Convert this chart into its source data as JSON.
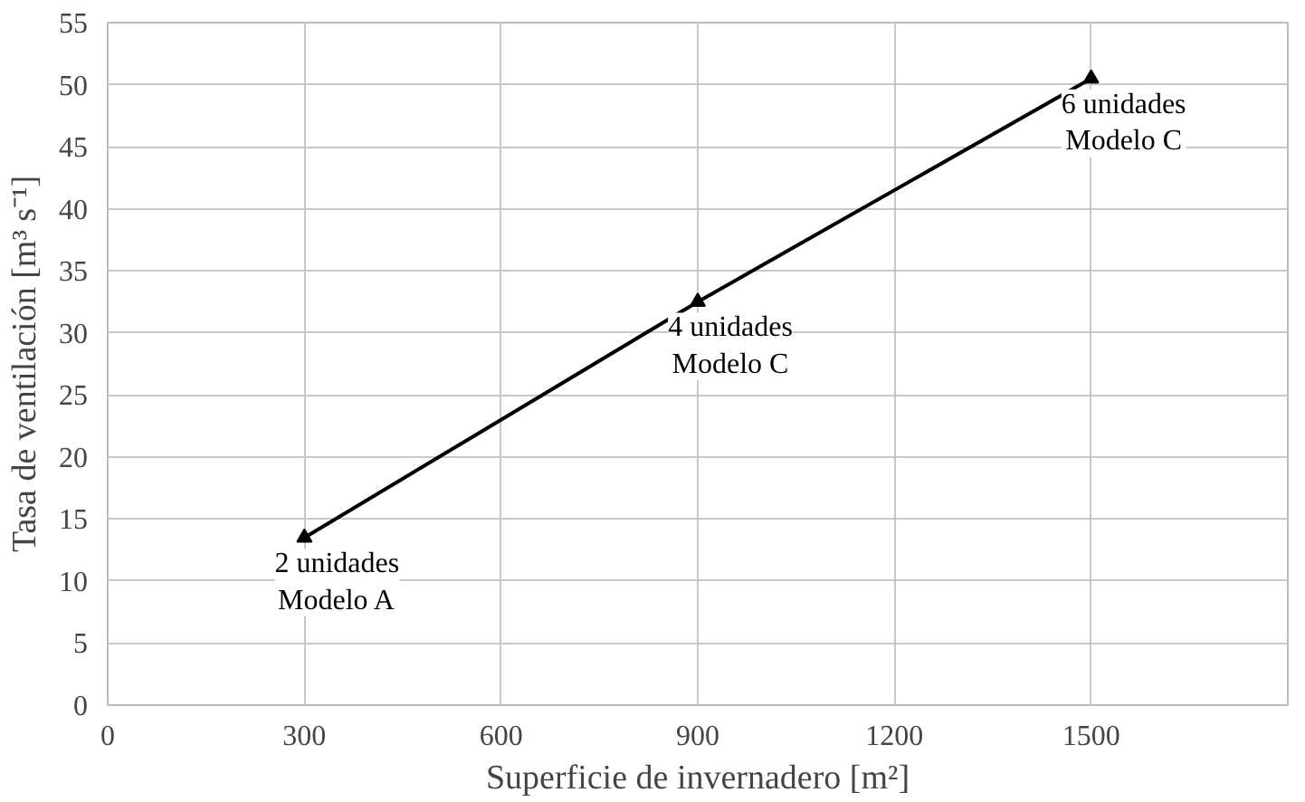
{
  "chart_data": {
    "type": "line",
    "xlabel": "Superficie de invernadero [m²]",
    "ylabel": "Tasa de ventilación [m³ s⁻¹]",
    "x": [
      300,
      900,
      1500
    ],
    "series": [
      {
        "color": "#000000",
        "values": [
          13.5,
          32.5,
          50.5
        ]
      }
    ],
    "xlim": [
      0,
      1800
    ],
    "xticks": [
      0,
      300,
      600,
      900,
      1200,
      1500,
      {
        "value": 1800,
        "label": null
      }
    ],
    "ylim": [
      0,
      55
    ],
    "yticks": [
      0,
      5,
      10,
      15,
      20,
      25,
      30,
      35,
      40,
      45,
      50,
      55
    ],
    "grid": true,
    "marker": "triangle",
    "line_style": "solid",
    "annotations": [
      {
        "text": "2 unidades\nModelo A",
        "x": 300,
        "y": 13.5
      },
      {
        "text": "4 unidades\nModelo C",
        "x": 900,
        "y": 32.5
      },
      {
        "text": "6 unidades\nModelo C",
        "x": 1500,
        "y": 50.5
      }
    ]
  }
}
